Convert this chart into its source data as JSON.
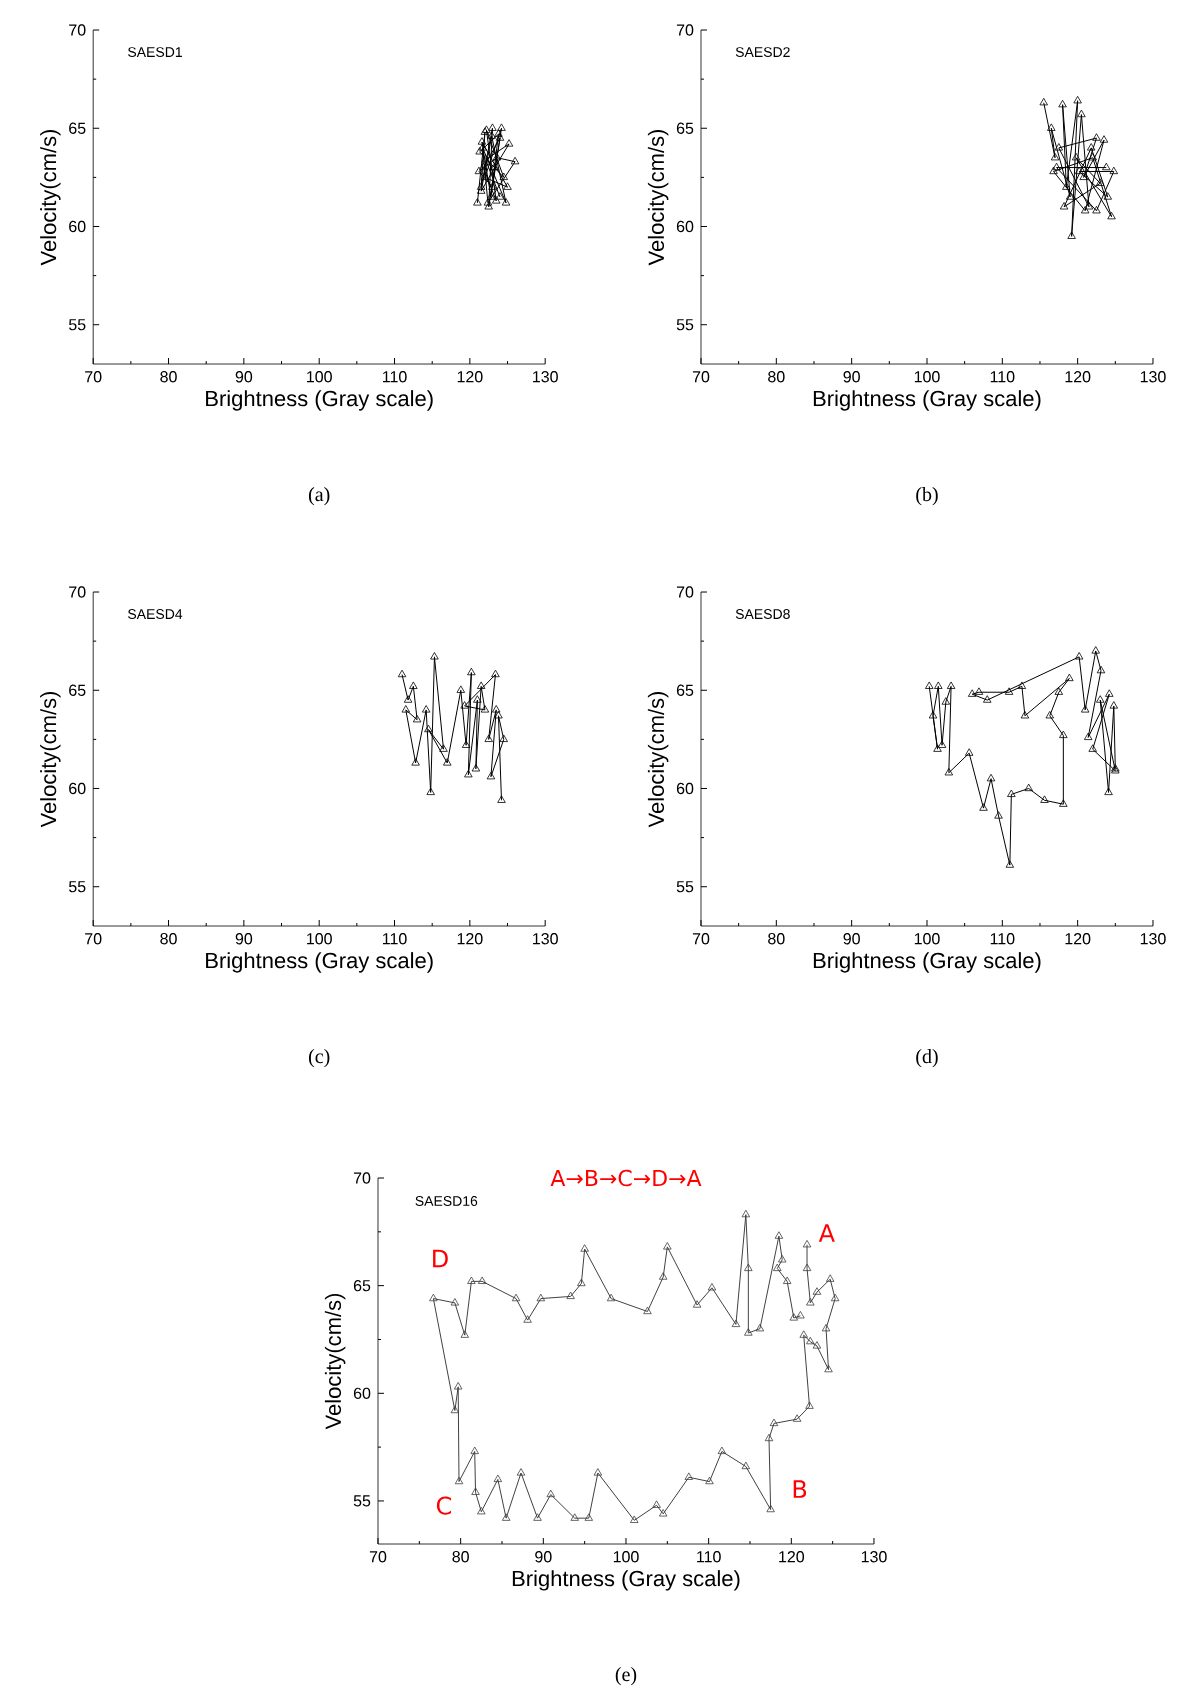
{
  "chart_data": [
    {
      "type": "line",
      "title": "SAESD1",
      "xlabel": "Brightness (Gray scale)",
      "ylabel": "Velocity(cm/s)",
      "xlim": [
        70,
        130
      ],
      "ylim": [
        53,
        70
      ],
      "xticks": [
        70,
        80,
        90,
        100,
        110,
        120,
        130
      ],
      "yticks": [
        55,
        60,
        65,
        70
      ],
      "marker": "triangle",
      "annotations": [
        "(a)"
      ],
      "series": [
        {
          "color": "#000000",
          "x": [
            121,
            122,
            121.5,
            123,
            122.5,
            124,
            121.8,
            123.5,
            122.2,
            124.5,
            121.3,
            123.8,
            122.8,
            121.6,
            125,
            122,
            124.2,
            123,
            121.2,
            123.6,
            126,
            122.4,
            121.7,
            124.8,
            122.9,
            121.5,
            123.3,
            125.2,
            122.1,
            124
          ],
          "values": [
            61.2,
            64.8,
            62,
            65,
            61,
            64.5,
            63,
            61.3,
            64.9,
            62.5,
            63.8,
            64.7,
            61.5,
            64.3,
            62,
            62.5,
            65,
            62,
            62.8,
            63.5,
            63.3,
            61.2,
            64,
            61.2,
            64.6,
            61.8,
            63,
            64.2,
            63.4,
            61.5
          ]
        }
      ]
    },
    {
      "type": "line",
      "title": "SAESD2",
      "xlabel": "Brightness (Gray scale)",
      "ylabel": "Velocity(cm/s)",
      "xlim": [
        70,
        130
      ],
      "ylim": [
        53,
        70
      ],
      "xticks": [
        70,
        80,
        90,
        100,
        110,
        120,
        130
      ],
      "yticks": [
        55,
        60,
        65,
        70
      ],
      "marker": "triangle",
      "annotations": [
        "(b)"
      ],
      "series": [
        {
          "color": "#000000",
          "x": [
            115.5,
            117,
            116.5,
            119,
            118,
            118.5,
            120,
            119.2,
            120.5,
            121.5,
            117.5,
            122.5,
            120.8,
            123.5,
            121,
            116.8,
            122,
            124.5,
            119.8,
            123,
            118.2,
            121.8,
            124,
            120.2,
            124.8,
            122.5,
            117.2,
            123.8
          ],
          "values": [
            66.3,
            63.5,
            65,
            61.5,
            66.2,
            62,
            66.4,
            59.5,
            65.7,
            61,
            64,
            64.5,
            62.5,
            64.4,
            60.8,
            62.8,
            63.5,
            60.5,
            63.5,
            62.2,
            61,
            64,
            61.5,
            62.8,
            62.8,
            60.8,
            63,
            63
          ]
        }
      ]
    },
    {
      "type": "line",
      "title": "SAESD4",
      "xlabel": "Brightness (Gray scale)",
      "ylabel": "Velocity(cm/s)",
      "xlim": [
        70,
        130
      ],
      "ylim": [
        53,
        70
      ],
      "xticks": [
        70,
        80,
        90,
        100,
        110,
        120,
        130
      ],
      "yticks": [
        55,
        60,
        65,
        70
      ],
      "marker": "triangle",
      "annotations": [
        "(c)"
      ],
      "series": [
        {
          "color": "#000000",
          "x": [
            111,
            111.8,
            112.5,
            113,
            111.5,
            112.8,
            114.2,
            114.8,
            115.3,
            116.5,
            114.5,
            117,
            118.8,
            119.5,
            120.2,
            119.8,
            121,
            120.8,
            121.5,
            122,
            119.3,
            123.4,
            122.5,
            123.5,
            122.8,
            124.5,
            123.8,
            124.2
          ],
          "values": [
            65.8,
            64.5,
            65.2,
            63.5,
            64,
            61.3,
            64,
            59.8,
            66.7,
            62,
            63,
            61.3,
            65,
            62.2,
            65.9,
            60.7,
            64.5,
            61,
            65.2,
            64,
            64.2,
            65.8,
            62.5,
            64,
            60.6,
            62.5,
            63.7,
            59.4
          ]
        }
      ]
    },
    {
      "type": "line",
      "title": "SAESD8",
      "xlabel": "Brightness (Gray scale)",
      "ylabel": "Velocity(cm/s)",
      "xlim": [
        70,
        130
      ],
      "ylim": [
        53,
        70
      ],
      "xticks": [
        70,
        80,
        90,
        100,
        110,
        120,
        130
      ],
      "yticks": [
        55,
        60,
        65,
        70
      ],
      "marker": "triangle",
      "annotations": [
        "(d)"
      ],
      "series": [
        {
          "color": "#000000",
          "x": [
            100.3,
            101.4,
            100.8,
            101.5,
            102,
            102.5,
            103.2,
            102.9,
            105.6,
            107.5,
            108.5,
            109.5,
            111,
            111.2,
            113.5,
            115.6,
            118.1,
            118.1,
            116.3,
            117.5,
            118.9,
            113,
            112.6,
            110.9,
            106.9,
            106,
            108,
            120.2,
            121,
            122.4,
            123.1,
            121.4,
            124.2,
            122,
            125,
            123,
            124.1,
            124.8,
            125
          ],
          "values": [
            65.2,
            62,
            63.7,
            65.2,
            62.2,
            64.4,
            65.2,
            60.8,
            61.8,
            59,
            60.5,
            58.6,
            56.1,
            59.7,
            60,
            59.4,
            59.2,
            62.7,
            63.7,
            64.9,
            65.6,
            63.7,
            65.2,
            64.9,
            64.9,
            64.8,
            64.5,
            66.7,
            64,
            67,
            66,
            62.6,
            64.8,
            62,
            60.9,
            64.5,
            59.8,
            64.2,
            61
          ]
        }
      ]
    },
    {
      "type": "line",
      "title": "SAESD16",
      "xlabel": "Brightness (Gray scale)",
      "ylabel": "Velocity(cm/s)",
      "xlim": [
        70,
        130
      ],
      "ylim": [
        53,
        70
      ],
      "xticks": [
        70,
        80,
        90,
        100,
        110,
        120,
        130
      ],
      "yticks": [
        55,
        60,
        65,
        70
      ],
      "marker": "triangle",
      "annotations": [
        "(e)",
        "A→B→C→D→A",
        "A",
        "B",
        "C",
        "D"
      ],
      "series": [
        {
          "color": "#404040",
          "x": [
            121.9,
            121.9,
            122.3,
            123.1,
            124.7,
            125.3,
            124.2,
            124.5,
            123.1,
            122.3,
            121.5,
            122.2,
            120.7,
            117.9,
            117.3,
            117.5,
            114.5,
            111.6,
            110.1,
            107.6,
            104.5,
            103.7,
            101.0,
            96.6,
            95.5,
            93.8,
            90.9,
            89.3,
            87.3,
            85.5,
            84.5,
            82.5,
            81.8,
            81.7,
            79.8,
            79.7,
            79.3,
            76.7,
            79.3,
            80.5,
            81.3,
            82.6,
            86.7,
            88.1,
            89.7,
            93.3,
            94.6,
            95.0,
            98.2,
            102.6,
            104.5,
            105.0,
            108.6,
            110.4,
            113.3,
            114.5,
            114.8,
            114.8,
            116.2,
            118.5,
            118.9,
            118.3,
            119.5,
            120.3,
            121.1
          ],
          "values": [
            66.9,
            65.8,
            64.2,
            64.7,
            65.3,
            64.4,
            63.0,
            61.1,
            62.2,
            62.4,
            62.7,
            59.4,
            58.8,
            58.6,
            57.9,
            54.6,
            56.6,
            57.3,
            55.9,
            56.1,
            54.4,
            54.8,
            54.1,
            56.3,
            54.2,
            54.2,
            55.3,
            54.2,
            56.3,
            54.2,
            56.0,
            54.5,
            55.4,
            57.3,
            55.9,
            60.3,
            59.2,
            64.4,
            64.2,
            62.7,
            65.2,
            65.2,
            64.4,
            63.4,
            64.4,
            64.5,
            65.1,
            66.7,
            64.4,
            63.8,
            65.4,
            66.8,
            64.1,
            64.9,
            63.2,
            68.3,
            65.8,
            62.8,
            63.0,
            67.3,
            66.2,
            65.8,
            65.2,
            63.5,
            63.6
          ]
        }
      ]
    }
  ]
}
